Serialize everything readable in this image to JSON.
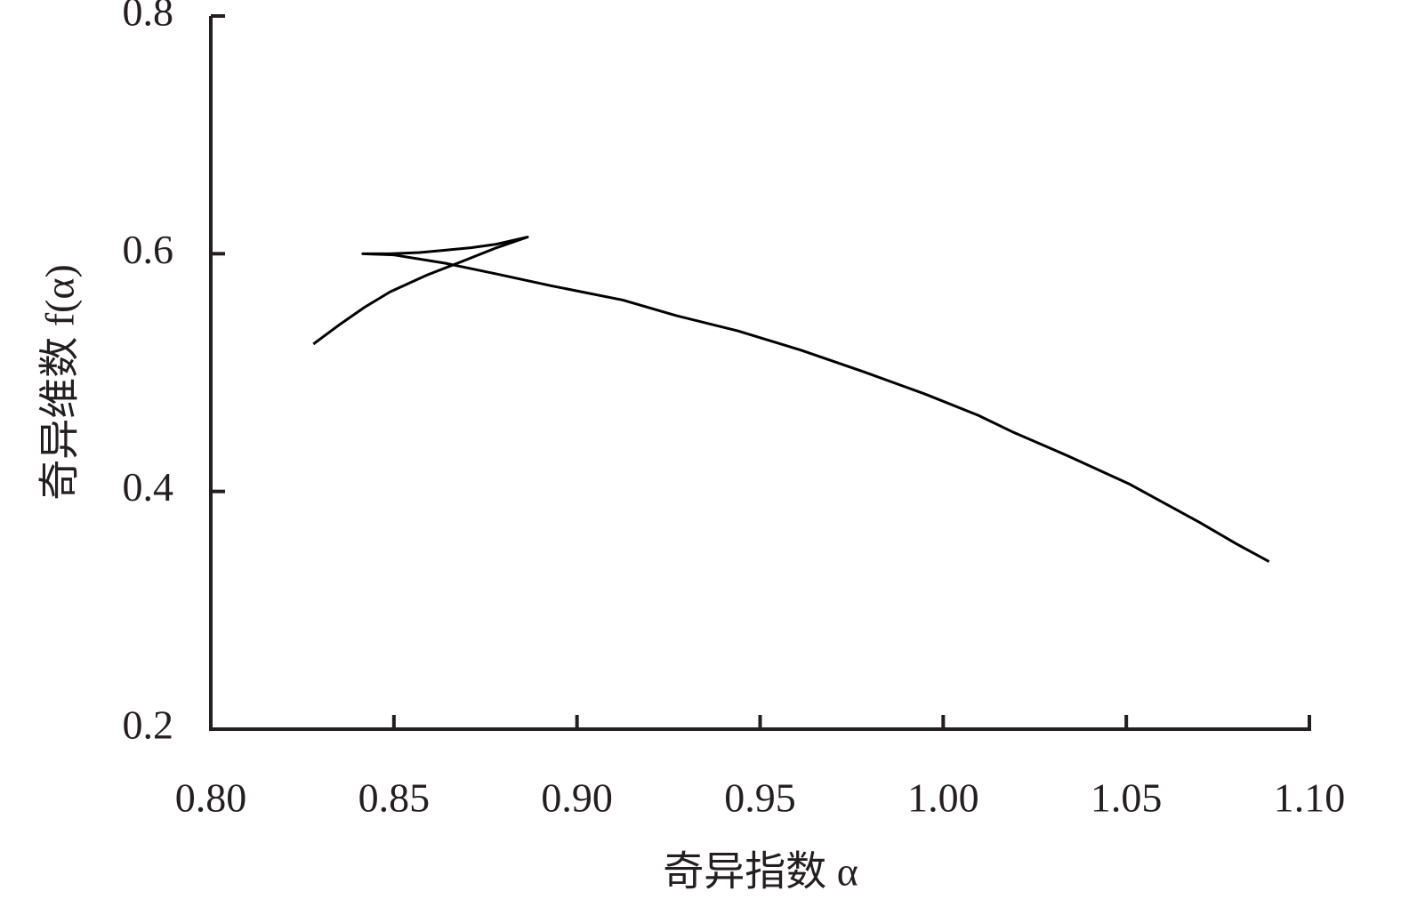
{
  "chart_data": {
    "type": "line",
    "x_label": "奇异指数 α",
    "y_label": "奇异维数 f(α)",
    "x": [
      0.828,
      0.835,
      0.842,
      0.849,
      0.859,
      0.869,
      0.878,
      0.8865,
      0.878,
      0.871,
      0.864,
      0.857,
      0.849,
      0.8415,
      0.85,
      0.864,
      0.878,
      0.893,
      0.9125,
      0.927,
      0.944,
      0.961,
      0.978,
      0.995,
      1.0096,
      1.019,
      1.034,
      1.051,
      1.07,
      1.08,
      1.089
    ],
    "values": [
      0.524,
      0.54,
      0.555,
      0.568,
      0.582,
      0.594,
      0.605,
      0.614,
      0.608,
      0.605,
      0.603,
      0.601,
      0.6,
      0.6,
      0.599,
      0.592,
      0.583,
      0.573,
      0.561,
      0.548,
      0.535,
      0.519,
      0.501,
      0.482,
      0.464,
      0.45,
      0.43,
      0.406,
      0.374,
      0.356,
      0.341
    ],
    "color": "#000000",
    "xlim": [
      0.8,
      1.1
    ],
    "xticks": [
      {
        "value": 0.8,
        "label": "0.80"
      },
      {
        "value": 0.85,
        "label": "0.85"
      },
      {
        "value": 0.9,
        "label": "0.90"
      },
      {
        "value": 0.95,
        "label": "0.95"
      },
      {
        "value": 1,
        "label": "1.00"
      },
      {
        "value": 1.05,
        "label": "1.05"
      },
      {
        "value": 1.1,
        "label": "1.10"
      }
    ],
    "ylim": [
      0.2,
      0.8
    ],
    "yticks": [
      0.2,
      0.4,
      0.6,
      0.8
    ],
    "grid": false
  }
}
